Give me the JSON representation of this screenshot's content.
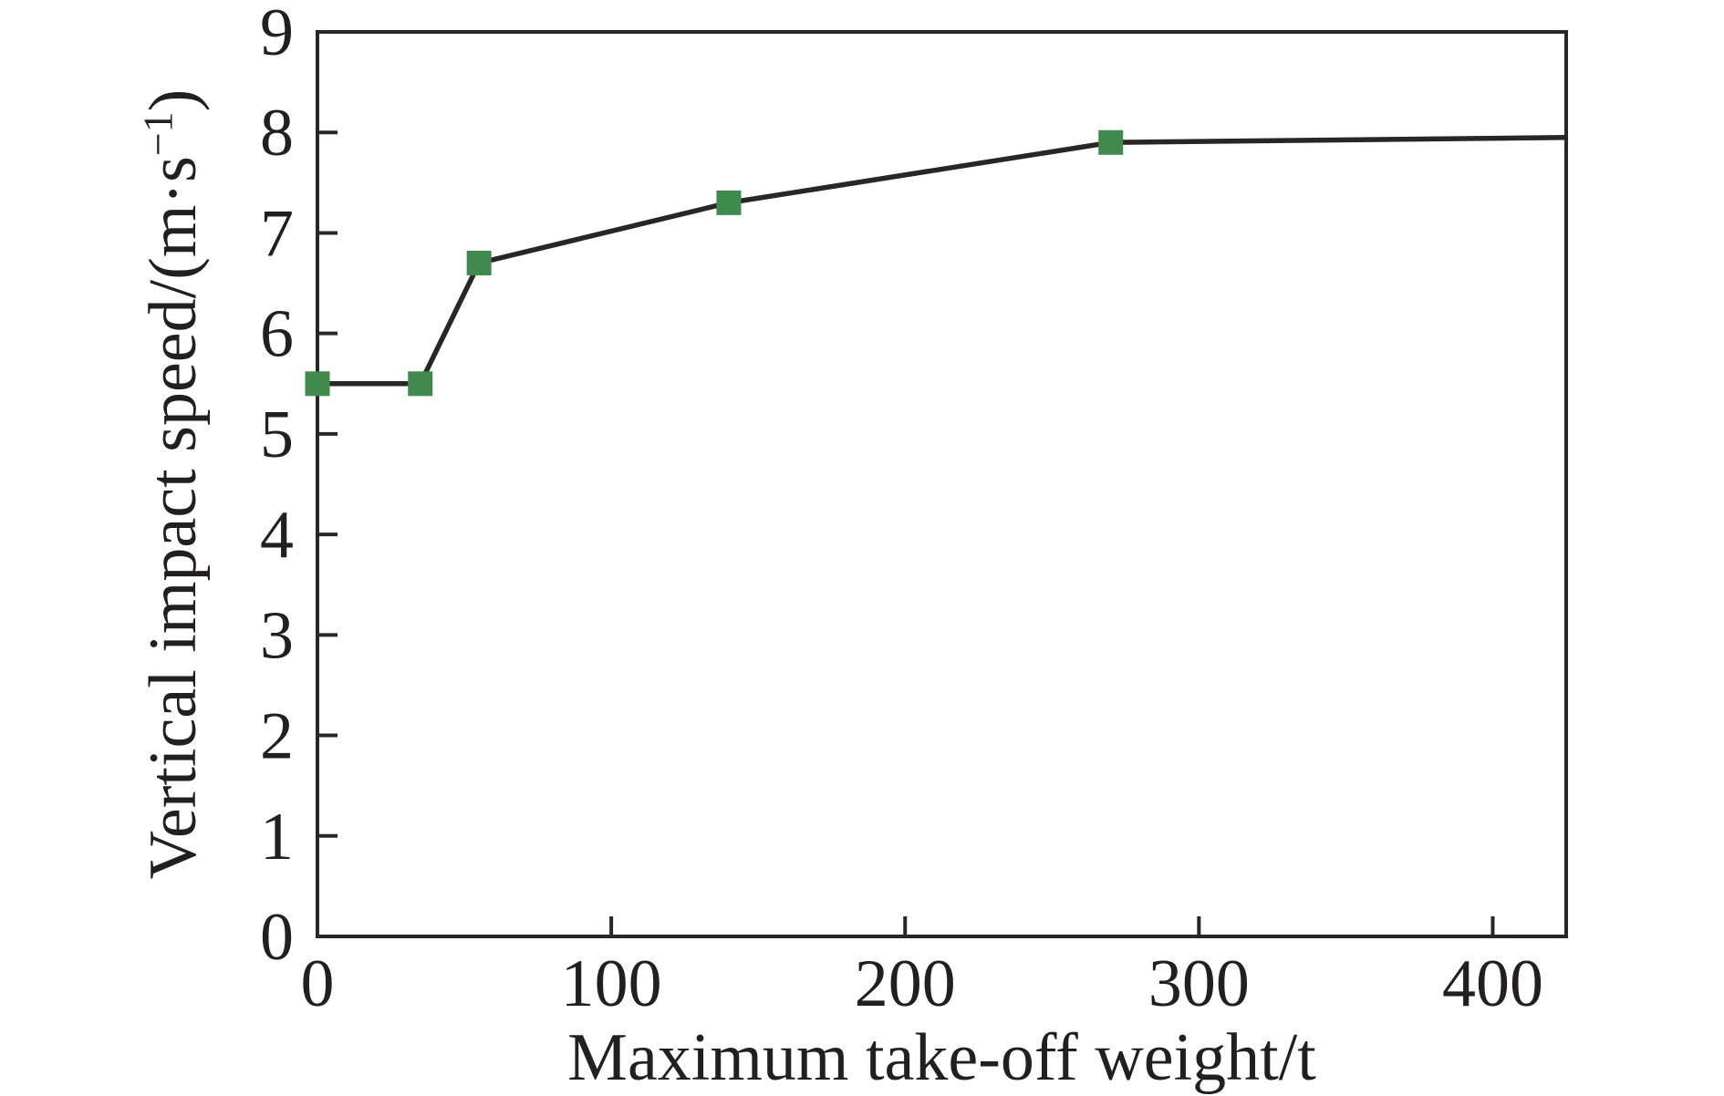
{
  "chart_data": {
    "type": "line",
    "title": "",
    "xlabel": "Maximum take-off weight/t",
    "ylabel": "Vertical impact speed/(m·s⁻¹)",
    "ylabel_parts": {
      "prefix": "Vertical impact speed/(m·s",
      "superscript": "−1",
      "suffix": ")"
    },
    "xlim": [
      0,
      425
    ],
    "ylim": [
      0,
      9
    ],
    "x_ticks": [
      0,
      100,
      200,
      300,
      400
    ],
    "y_ticks": [
      0,
      1,
      2,
      3,
      4,
      5,
      6,
      7,
      8,
      9
    ],
    "grid": false,
    "legend": "none",
    "series": [
      {
        "name": "vertical impact speed",
        "marker": "square",
        "marker_color": "#418a4e",
        "line_color": "#2a2627",
        "marker_points": [
          [
            0,
            5.5
          ],
          [
            35,
            5.5
          ],
          [
            55,
            6.7
          ],
          [
            140,
            7.3
          ],
          [
            270,
            7.9
          ]
        ],
        "points": [
          [
            0,
            5.5
          ],
          [
            35,
            5.5
          ],
          [
            55,
            6.7
          ],
          [
            140,
            7.3
          ],
          [
            270,
            7.9
          ],
          [
            425,
            7.95
          ]
        ]
      }
    ],
    "colors": {
      "axis": "#2a2627",
      "text": "#231f20",
      "background": "#ffffff"
    }
  }
}
